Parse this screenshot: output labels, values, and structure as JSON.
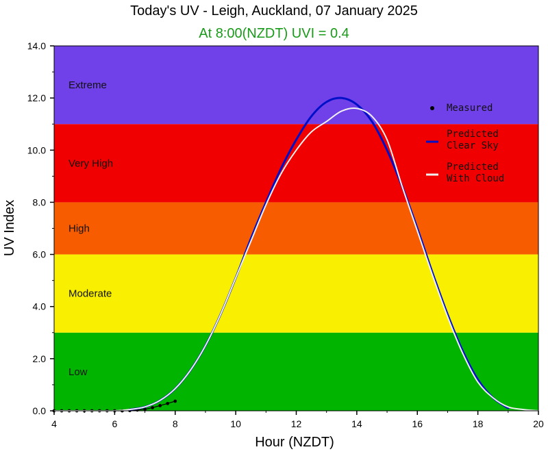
{
  "chart_data": {
    "type": "line",
    "title": "Today's UV - Leigh, Auckland, 07 January 2025",
    "subtitle": "At  8:00(NZDT) UVI =  0.4",
    "xlabel": "Hour (NZDT)",
    "ylabel": "UV Index",
    "xlim": [
      4,
      20
    ],
    "ylim": [
      0,
      14
    ],
    "xticks": [
      "4",
      "6",
      "8",
      "10",
      "12",
      "14",
      "16",
      "18",
      "20"
    ],
    "yticks": [
      "0.0",
      "2.0",
      "4.0",
      "6.0",
      "8.0",
      "10.0",
      "12.0",
      "14.0"
    ],
    "bands": [
      {
        "label": "Low",
        "from": 0,
        "to": 3,
        "color": "#00b400"
      },
      {
        "label": "Moderate",
        "from": 3,
        "to": 6,
        "color": "#f8f000"
      },
      {
        "label": "High",
        "from": 6,
        "to": 8,
        "color": "#f85c00"
      },
      {
        "label": "Very High",
        "from": 8,
        "to": 11,
        "color": "#f00000"
      },
      {
        "label": "Extreme",
        "from": 11,
        "to": 14,
        "color": "#7040e8"
      }
    ],
    "legend": {
      "placement": "right",
      "entries": [
        {
          "label": [
            "Measured"
          ],
          "color": "#000000",
          "kind": "dot"
        },
        {
          "label": [
            "Predicted",
            "Clear Sky"
          ],
          "color": "#0010c8",
          "kind": "line"
        },
        {
          "label": [
            "Predicted",
            "With Cloud"
          ],
          "color": "#f0f0f0",
          "kind": "line"
        }
      ]
    },
    "series": [
      {
        "name": "Measured",
        "color": "#000000",
        "x": [
          4.0,
          4.25,
          4.5,
          4.75,
          5.0,
          5.25,
          5.5,
          5.75,
          6.0,
          6.25,
          6.5,
          6.75,
          7.0,
          7.25,
          7.5,
          7.75,
          8.0
        ],
        "y": [
          0,
          0,
          0,
          0,
          0,
          0,
          0,
          0,
          0,
          0,
          0.01,
          0.03,
          0.06,
          0.12,
          0.2,
          0.28,
          0.37
        ]
      },
      {
        "name": "Predicted Clear Sky",
        "color": "#0010c8",
        "x": [
          6.5,
          7,
          7.5,
          8,
          8.5,
          9,
          9.5,
          10,
          10.5,
          11,
          11.5,
          12,
          12.5,
          13,
          13.5,
          14,
          14.5,
          15,
          15.5,
          16,
          16.5,
          17,
          17.5,
          18,
          18.5,
          19
        ],
        "y": [
          0.05,
          0.15,
          0.4,
          0.85,
          1.55,
          2.5,
          3.7,
          5.1,
          6.6,
          8.0,
          9.3,
          10.4,
          11.3,
          11.85,
          12.0,
          11.75,
          11.1,
          10.0,
          8.6,
          7.0,
          5.3,
          3.7,
          2.3,
          1.2,
          0.5,
          0.1
        ]
      },
      {
        "name": "Predicted With Cloud",
        "color": "#f0f0f0",
        "x": [
          4.0,
          5.0,
          6.0,
          6.5,
          7,
          7.5,
          8,
          8.5,
          9,
          9.5,
          10,
          10.5,
          11,
          11.5,
          12,
          12.5,
          13,
          13.5,
          14,
          14.5,
          15,
          15.5,
          16,
          16.5,
          17,
          17.5,
          18,
          18.5,
          19,
          19.5,
          20
        ],
        "y": [
          0,
          0,
          0,
          0.05,
          0.15,
          0.4,
          0.85,
          1.55,
          2.5,
          3.7,
          5.1,
          6.5,
          7.9,
          9.1,
          10.0,
          10.7,
          11.1,
          11.5,
          11.6,
          11.3,
          10.4,
          8.6,
          6.9,
          5.2,
          3.6,
          2.2,
          1.1,
          0.5,
          0.15,
          0.05,
          0.0
        ]
      }
    ]
  }
}
